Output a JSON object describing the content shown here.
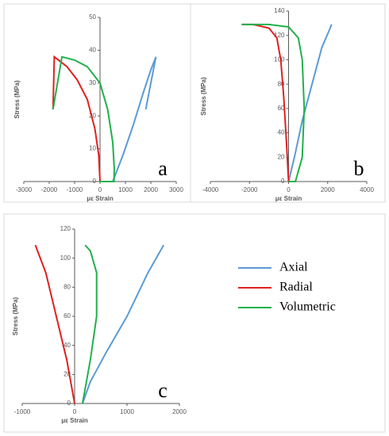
{
  "chart_data": [
    {
      "type": "line",
      "annotation": "a",
      "xlabel": "με Strain",
      "ylabel": "Stress (MPa)",
      "xlim": [
        -3000,
        3000
      ],
      "xticks": [
        -3000,
        -2000,
        -1000,
        0,
        1000,
        2000,
        3000
      ],
      "ylim": [
        0,
        50
      ],
      "yticks": [
        0,
        10,
        20,
        30,
        40,
        50
      ],
      "series": [
        {
          "color": "#5b9bd5",
          "x": [
            500,
            900,
            1300,
            1700,
            2000,
            2200,
            2000,
            1800
          ],
          "values": [
            0,
            8,
            17,
            27,
            34,
            38,
            30,
            22
          ]
        },
        {
          "color": "#e02020",
          "x": [
            0,
            -50,
            -200,
            -500,
            -900,
            -1300,
            -1800,
            -1850
          ],
          "values": [
            0,
            8,
            16,
            25,
            31,
            35,
            38,
            22
          ]
        },
        {
          "color": "#22b04b",
          "x": [
            -1850,
            -1500,
            -1000,
            -500,
            0,
            300,
            500,
            560,
            550,
            500,
            0
          ],
          "values": [
            22,
            38,
            37,
            35,
            30,
            22,
            12,
            4,
            0,
            0,
            0
          ]
        }
      ]
    },
    {
      "type": "line",
      "annotation": "b",
      "xlabel": "με Strain",
      "ylabel": "Stress (MPa)",
      "xlim": [
        -4000,
        4000
      ],
      "xticks": [
        -4000,
        -2000,
        0,
        2000,
        4000
      ],
      "ylim": [
        0,
        140
      ],
      "yticks": [
        0,
        20,
        40,
        60,
        80,
        100,
        120,
        140
      ],
      "series": [
        {
          "color": "#5b9bd5",
          "x": [
            0,
            300,
            700,
            1200,
            1700,
            2100,
            2200
          ],
          "values": [
            0,
            20,
            50,
            80,
            110,
            125,
            129
          ]
        },
        {
          "color": "#e02020",
          "x": [
            0,
            -100,
            -250,
            -400,
            -600,
            -1000,
            -1800,
            -2400
          ],
          "values": [
            0,
            30,
            70,
            100,
            118,
            126,
            129,
            129
          ]
        },
        {
          "color": "#22b04b",
          "x": [
            -2400,
            -1000,
            0,
            500,
            700,
            800,
            700,
            350,
            0
          ],
          "values": [
            129,
            129,
            127,
            118,
            100,
            60,
            20,
            0,
            0
          ]
        }
      ]
    },
    {
      "type": "line",
      "annotation": "c",
      "xlabel": "με Strain",
      "ylabel": "Stress (MPa)",
      "xlim": [
        -1000,
        2000
      ],
      "xticks": [
        -1000,
        0,
        1000,
        2000
      ],
      "ylim": [
        0,
        120
      ],
      "yticks": [
        0,
        20,
        40,
        60,
        80,
        100,
        120
      ],
      "legend": "right",
      "series": [
        {
          "name": "Axial",
          "color": "#5b9bd5",
          "x": [
            150,
            300,
            600,
            1000,
            1400,
            1700
          ],
          "values": [
            0,
            15,
            35,
            60,
            90,
            109
          ]
        },
        {
          "name": "Radial",
          "color": "#e02020",
          "x": [
            0,
            -150,
            -350,
            -550,
            -750
          ],
          "values": [
            0,
            30,
            60,
            90,
            109
          ]
        },
        {
          "name": "Volumetric",
          "color": "#22b04b",
          "x": [
            150,
            300,
            420,
            420,
            300,
            200
          ],
          "values": [
            0,
            30,
            60,
            90,
            105,
            109
          ]
        }
      ]
    }
  ]
}
